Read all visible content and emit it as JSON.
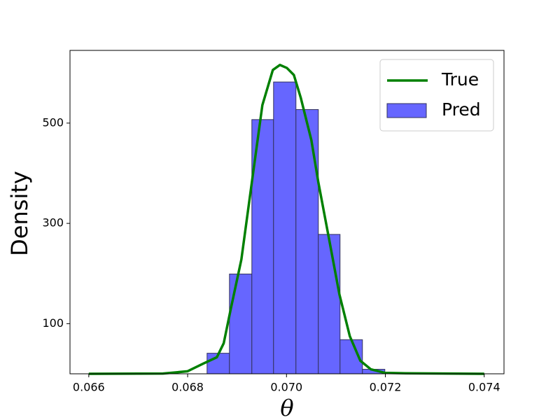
{
  "chart_data": {
    "type": "histogram",
    "xlabel": "θ",
    "ylabel": "Density",
    "xlim": [
      0.06562,
      0.0744
    ],
    "ylim": [
      0,
      645
    ],
    "xticks": [
      0.066,
      0.068,
      {
        "value": 0.07,
        "label": "0.070"
      },
      0.072,
      0.074
    ],
    "yticks": [
      100,
      300,
      500
    ],
    "legend": "upper right",
    "series": [
      {
        "name": "True",
        "type": "line",
        "color": "#008000",
        "x": [
          0.066,
          0.0675,
          0.067996,
          0.068308,
          0.068591,
          0.06873,
          0.068874,
          0.069087,
          0.069299,
          0.069512,
          0.069724,
          0.069866,
          0.070007,
          0.070149,
          0.07029,
          0.070503,
          0.070644,
          0.070857,
          0.071069,
          0.071281,
          0.071494,
          0.071706,
          0.071989,
          0.072414,
          0.074
        ],
        "values": [
          0,
          0.5,
          5,
          20,
          33,
          61,
          130,
          228,
          382,
          536,
          606,
          616,
          610,
          596,
          550,
          466,
          382,
          271,
          159,
          75,
          26,
          9,
          2,
          1,
          0
        ]
      },
      {
        "name": "Pred",
        "type": "histogram",
        "color": "#6666ff",
        "edgecolor": "#33335c",
        "bins": [
          0.068393,
          0.068846,
          0.069299,
          0.069738,
          0.070191,
          0.070644,
          0.071083,
          0.071536,
          0.071989
        ],
        "values": [
          41,
          199,
          507,
          582,
          527,
          278,
          68,
          9
        ]
      }
    ]
  }
}
